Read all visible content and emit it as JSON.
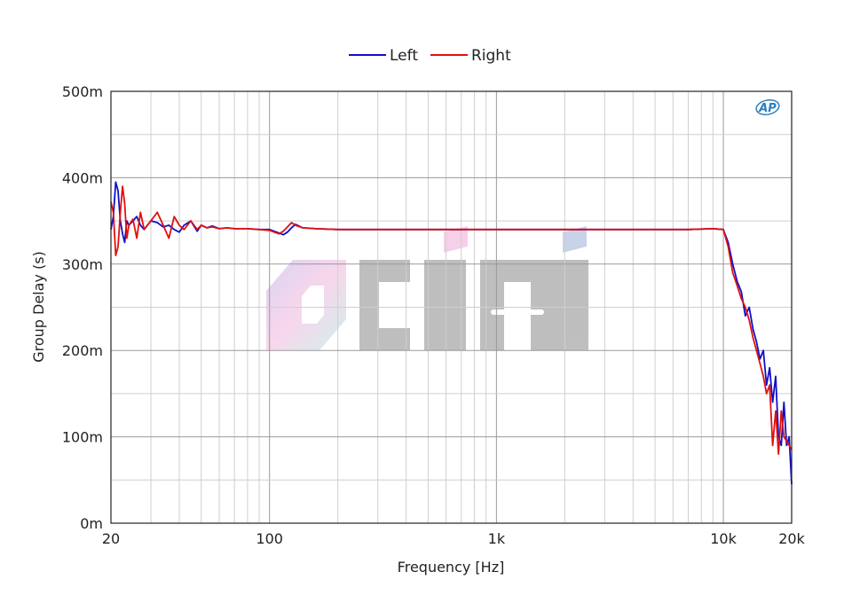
{
  "chart_data": {
    "type": "line",
    "title": "",
    "xlabel": "Frequency [Hz]",
    "ylabel": "Group Delay (s)",
    "xscale": "log",
    "xlim": [
      20,
      20000
    ],
    "ylim": [
      0,
      0.5
    ],
    "x_ticks": [
      {
        "value": 20,
        "label": "20"
      },
      {
        "value": 100,
        "label": "100"
      },
      {
        "value": 1000,
        "label": "1k"
      },
      {
        "value": 10000,
        "label": "10k"
      },
      {
        "value": 20000,
        "label": "20k"
      }
    ],
    "y_ticks": [
      {
        "value": 0,
        "label": "0m"
      },
      {
        "value": 0.1,
        "label": "100m"
      },
      {
        "value": 0.2,
        "label": "200m"
      },
      {
        "value": 0.3,
        "label": "300m"
      },
      {
        "value": 0.4,
        "label": "400m"
      },
      {
        "value": 0.5,
        "label": "500m"
      }
    ],
    "grid": true,
    "legend_position": "top-center",
    "badge": "AP",
    "series": [
      {
        "name": "Left",
        "color": "#1010c8",
        "x": [
          20,
          20.5,
          21,
          21.5,
          22,
          22.5,
          23,
          23.5,
          24,
          25,
          26,
          27,
          28,
          30,
          32,
          34,
          36,
          38,
          40,
          42,
          45,
          48,
          50,
          53,
          56,
          60,
          65,
          70,
          80,
          90,
          100,
          105,
          110,
          115,
          120,
          125,
          130,
          140,
          160,
          200,
          300,
          500,
          1000,
          2000,
          3000,
          5000,
          7000,
          9000,
          10000,
          10500,
          11000,
          11500,
          12000,
          12500,
          13000,
          13500,
          14000,
          14500,
          15000,
          15500,
          16000,
          16500,
          17000,
          17500,
          18000,
          18500,
          19000,
          19500,
          20000
        ],
        "y": [
          0.34,
          0.355,
          0.395,
          0.385,
          0.35,
          0.335,
          0.325,
          0.35,
          0.345,
          0.35,
          0.355,
          0.345,
          0.34,
          0.35,
          0.348,
          0.343,
          0.345,
          0.34,
          0.337,
          0.345,
          0.35,
          0.338,
          0.345,
          0.342,
          0.344,
          0.341,
          0.342,
          0.341,
          0.341,
          0.34,
          0.34,
          0.338,
          0.336,
          0.334,
          0.337,
          0.342,
          0.346,
          0.342,
          0.341,
          0.34,
          0.34,
          0.34,
          0.34,
          0.34,
          0.34,
          0.34,
          0.34,
          0.341,
          0.34,
          0.325,
          0.3,
          0.28,
          0.268,
          0.24,
          0.25,
          0.225,
          0.21,
          0.19,
          0.2,
          0.16,
          0.18,
          0.14,
          0.17,
          0.1,
          0.09,
          0.14,
          0.09,
          0.1,
          0.045
        ]
      },
      {
        "name": "Right",
        "color": "#e01010",
        "x": [
          20,
          20.5,
          21,
          21.5,
          22,
          22.5,
          23,
          23.5,
          24,
          25,
          26,
          27,
          28,
          30,
          32,
          34,
          36,
          38,
          40,
          42,
          45,
          48,
          50,
          53,
          56,
          60,
          65,
          70,
          80,
          90,
          100,
          105,
          110,
          115,
          120,
          125,
          130,
          140,
          160,
          200,
          300,
          500,
          1000,
          2000,
          3000,
          5000,
          7000,
          9000,
          10000,
          10500,
          11000,
          11500,
          12000,
          12500,
          13000,
          13500,
          14000,
          14500,
          15000,
          15500,
          16000,
          16500,
          17000,
          17500,
          18000,
          18500,
          19000,
          19500,
          20000
        ],
        "y": [
          0.372,
          0.36,
          0.31,
          0.32,
          0.36,
          0.39,
          0.37,
          0.33,
          0.345,
          0.352,
          0.33,
          0.36,
          0.34,
          0.35,
          0.36,
          0.345,
          0.33,
          0.355,
          0.345,
          0.34,
          0.35,
          0.34,
          0.345,
          0.342,
          0.343,
          0.341,
          0.342,
          0.341,
          0.341,
          0.34,
          0.339,
          0.337,
          0.335,
          0.338,
          0.343,
          0.348,
          0.345,
          0.342,
          0.341,
          0.34,
          0.34,
          0.34,
          0.34,
          0.34,
          0.34,
          0.34,
          0.34,
          0.341,
          0.34,
          0.32,
          0.29,
          0.275,
          0.26,
          0.25,
          0.235,
          0.215,
          0.2,
          0.185,
          0.17,
          0.15,
          0.16,
          0.09,
          0.13,
          0.08,
          0.13,
          0.1,
          0.095,
          0.09,
          0.085
        ]
      }
    ]
  }
}
